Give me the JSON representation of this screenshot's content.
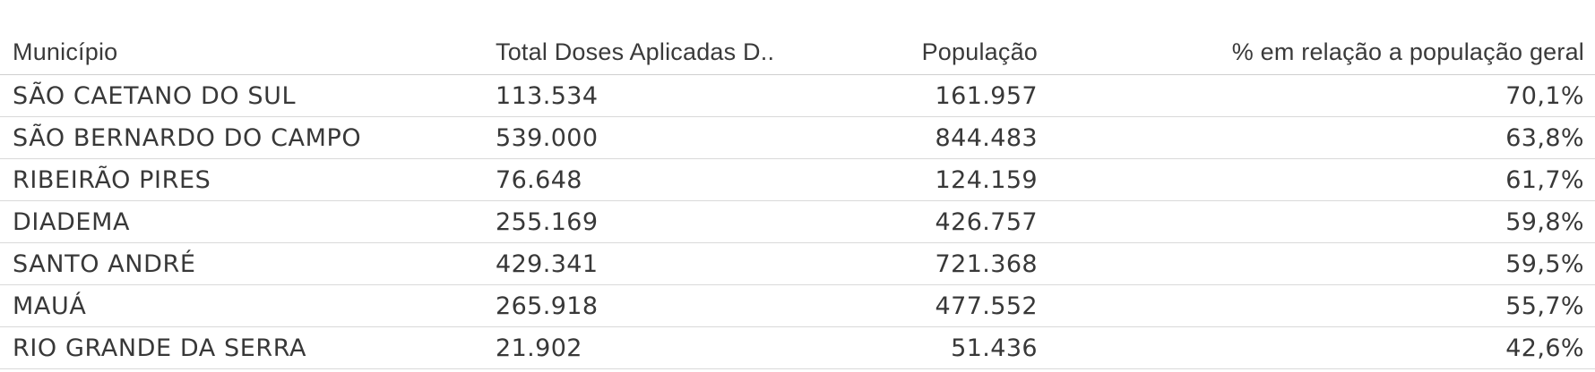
{
  "table": {
    "headers": {
      "municipio": "Município",
      "doses": "Total Doses Aplicadas D..",
      "populacao": "População",
      "percentual": "% em relação a população geral"
    },
    "rows": [
      {
        "municipio": "SÃO CAETANO DO SUL",
        "doses": "113.534",
        "populacao": "161.957",
        "percentual": "70,1%"
      },
      {
        "municipio": "SÃO BERNARDO DO CAMPO",
        "doses": "539.000",
        "populacao": "844.483",
        "percentual": "63,8%"
      },
      {
        "municipio": "RIBEIRÃO PIRES",
        "doses": "76.648",
        "populacao": "124.159",
        "percentual": "61,7%"
      },
      {
        "municipio": "DIADEMA",
        "doses": "255.169",
        "populacao": "426.757",
        "percentual": "59,8%"
      },
      {
        "municipio": "SANTO ANDRÉ",
        "doses": "429.341",
        "populacao": "721.368",
        "percentual": "59,5%"
      },
      {
        "municipio": "MAUÁ",
        "doses": "265.918",
        "populacao": "477.552",
        "percentual": "55,7%"
      },
      {
        "municipio": "RIO GRANDE DA SERRA",
        "doses": "21.902",
        "populacao": "51.436",
        "percentual": "42,6%"
      }
    ]
  }
}
